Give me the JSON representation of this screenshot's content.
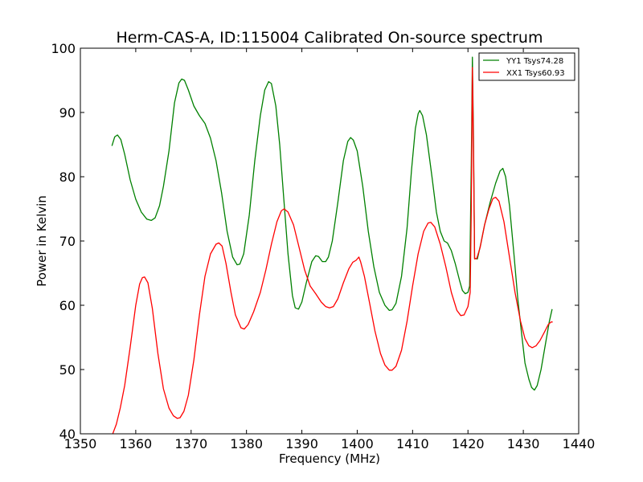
{
  "chart_data": {
    "type": "line",
    "title": "Herm-CAS-A, ID:115004 Calibrated On-source spectrum",
    "xlabel": "Frequency (MHz)",
    "ylabel": "Power in Kelvin",
    "xlim": [
      1350,
      1440
    ],
    "ylim": [
      40,
      100
    ],
    "xticks": [
      1350,
      1360,
      1370,
      1380,
      1390,
      1400,
      1410,
      1420,
      1430,
      1440
    ],
    "yticks": [
      40,
      50,
      60,
      70,
      80,
      90,
      100
    ],
    "grid": false,
    "legend_position": "top-right",
    "series": [
      {
        "name": "YY1 Tsys74.28",
        "color": "#008000",
        "points": [
          [
            1355.7,
            84.8
          ],
          [
            1356.2,
            86.2
          ],
          [
            1356.7,
            86.5
          ],
          [
            1357.3,
            85.8
          ],
          [
            1358.0,
            83.5
          ],
          [
            1359.0,
            79.5
          ],
          [
            1360.0,
            76.5
          ],
          [
            1361.0,
            74.5
          ],
          [
            1362.0,
            73.4
          ],
          [
            1362.8,
            73.2
          ],
          [
            1363.5,
            73.6
          ],
          [
            1364.3,
            75.5
          ],
          [
            1365.0,
            78.5
          ],
          [
            1366.0,
            84.0
          ],
          [
            1367.0,
            91.5
          ],
          [
            1367.8,
            94.6
          ],
          [
            1368.3,
            95.2
          ],
          [
            1368.8,
            95.0
          ],
          [
            1369.5,
            93.5
          ],
          [
            1370.5,
            91.0
          ],
          [
            1371.5,
            89.5
          ],
          [
            1372.5,
            88.3
          ],
          [
            1373.5,
            86.0
          ],
          [
            1374.5,
            82.5
          ],
          [
            1375.5,
            77.5
          ],
          [
            1376.5,
            71.5
          ],
          [
            1377.5,
            67.5
          ],
          [
            1378.3,
            66.3
          ],
          [
            1378.8,
            66.4
          ],
          [
            1379.5,
            68.0
          ],
          [
            1380.5,
            74.0
          ],
          [
            1381.5,
            82.5
          ],
          [
            1382.5,
            89.5
          ],
          [
            1383.3,
            93.5
          ],
          [
            1384.0,
            94.8
          ],
          [
            1384.5,
            94.5
          ],
          [
            1385.3,
            91.0
          ],
          [
            1386.0,
            85.0
          ],
          [
            1386.7,
            77.0
          ],
          [
            1387.5,
            68.0
          ],
          [
            1388.3,
            61.5
          ],
          [
            1388.8,
            59.6
          ],
          [
            1389.4,
            59.4
          ],
          [
            1390.0,
            60.5
          ],
          [
            1390.8,
            63.5
          ],
          [
            1391.8,
            66.8
          ],
          [
            1392.5,
            67.7
          ],
          [
            1393.0,
            67.6
          ],
          [
            1393.7,
            66.8
          ],
          [
            1394.3,
            66.8
          ],
          [
            1394.8,
            67.5
          ],
          [
            1395.5,
            70.0
          ],
          [
            1396.5,
            76.0
          ],
          [
            1397.5,
            82.5
          ],
          [
            1398.3,
            85.5
          ],
          [
            1398.8,
            86.1
          ],
          [
            1399.3,
            85.7
          ],
          [
            1400.0,
            84.0
          ],
          [
            1401.0,
            78.5
          ],
          [
            1402.0,
            71.5
          ],
          [
            1403.0,
            66.0
          ],
          [
            1404.0,
            62.0
          ],
          [
            1405.0,
            60.0
          ],
          [
            1405.8,
            59.2
          ],
          [
            1406.3,
            59.3
          ],
          [
            1407.0,
            60.3
          ],
          [
            1408.0,
            64.5
          ],
          [
            1409.0,
            72.0
          ],
          [
            1409.8,
            81.0
          ],
          [
            1410.5,
            87.5
          ],
          [
            1411.0,
            89.8
          ],
          [
            1411.3,
            90.3
          ],
          [
            1411.8,
            89.5
          ],
          [
            1412.5,
            86.5
          ],
          [
            1413.5,
            80.0
          ],
          [
            1414.3,
            74.5
          ],
          [
            1415.0,
            71.5
          ],
          [
            1415.7,
            70.0
          ],
          [
            1416.3,
            69.7
          ],
          [
            1417.0,
            68.5
          ],
          [
            1417.7,
            66.5
          ],
          [
            1418.5,
            63.8
          ],
          [
            1419.0,
            62.3
          ],
          [
            1419.5,
            61.8
          ],
          [
            1420.0,
            62.0
          ],
          [
            1420.3,
            63.0
          ],
          [
            1420.6,
            82.0
          ],
          [
            1420.8,
            98.6
          ],
          [
            1421.0,
            86.0
          ],
          [
            1421.2,
            67.3
          ],
          [
            1421.7,
            67.2
          ],
          [
            1422.3,
            69.5
          ],
          [
            1423.0,
            72.5
          ],
          [
            1424.0,
            76.0
          ],
          [
            1425.0,
            79.0
          ],
          [
            1425.8,
            80.9
          ],
          [
            1426.3,
            81.3
          ],
          [
            1426.8,
            80.0
          ],
          [
            1427.5,
            75.5
          ],
          [
            1428.3,
            68.0
          ],
          [
            1429.0,
            61.0
          ],
          [
            1429.7,
            55.5
          ],
          [
            1430.3,
            51.0
          ],
          [
            1431.0,
            48.5
          ],
          [
            1431.5,
            47.2
          ],
          [
            1432.0,
            46.8
          ],
          [
            1432.5,
            47.5
          ],
          [
            1433.2,
            50.0
          ],
          [
            1434.0,
            54.0
          ],
          [
            1434.7,
            57.5
          ],
          [
            1435.2,
            59.4
          ]
        ]
      },
      {
        "name": "XX1 Tsys60.93",
        "color": "#ff0000",
        "points": [
          [
            1355.8,
            39.9
          ],
          [
            1356.5,
            41.5
          ],
          [
            1357.2,
            44.0
          ],
          [
            1358.0,
            47.5
          ],
          [
            1359.0,
            53.5
          ],
          [
            1360.0,
            60.0
          ],
          [
            1360.7,
            63.3
          ],
          [
            1361.2,
            64.3
          ],
          [
            1361.6,
            64.4
          ],
          [
            1362.2,
            63.5
          ],
          [
            1363.0,
            59.5
          ],
          [
            1364.0,
            52.5
          ],
          [
            1365.0,
            47.0
          ],
          [
            1366.0,
            44.0
          ],
          [
            1366.8,
            42.8
          ],
          [
            1367.5,
            42.4
          ],
          [
            1368.0,
            42.5
          ],
          [
            1368.7,
            43.5
          ],
          [
            1369.5,
            46.0
          ],
          [
            1370.5,
            51.5
          ],
          [
            1371.5,
            58.5
          ],
          [
            1372.5,
            64.5
          ],
          [
            1373.5,
            68.0
          ],
          [
            1374.5,
            69.5
          ],
          [
            1375.0,
            69.7
          ],
          [
            1375.6,
            69.2
          ],
          [
            1376.3,
            66.5
          ],
          [
            1377.2,
            62.0
          ],
          [
            1378.0,
            58.5
          ],
          [
            1379.0,
            56.5
          ],
          [
            1379.6,
            56.3
          ],
          [
            1380.3,
            57.0
          ],
          [
            1381.3,
            59.0
          ],
          [
            1382.5,
            62.0
          ],
          [
            1383.5,
            65.5
          ],
          [
            1384.5,
            69.5
          ],
          [
            1385.5,
            73.0
          ],
          [
            1386.3,
            74.7
          ],
          [
            1386.8,
            75.0
          ],
          [
            1387.5,
            74.5
          ],
          [
            1388.5,
            72.5
          ],
          [
            1389.5,
            69.0
          ],
          [
            1390.5,
            65.5
          ],
          [
            1391.5,
            63.0
          ],
          [
            1392.5,
            61.8
          ],
          [
            1393.5,
            60.5
          ],
          [
            1394.3,
            59.8
          ],
          [
            1395.0,
            59.6
          ],
          [
            1395.7,
            59.8
          ],
          [
            1396.5,
            61.0
          ],
          [
            1397.5,
            63.5
          ],
          [
            1398.5,
            65.7
          ],
          [
            1399.2,
            66.7
          ],
          [
            1399.8,
            67.0
          ],
          [
            1400.3,
            67.5
          ],
          [
            1400.6,
            66.8
          ],
          [
            1401.3,
            64.5
          ],
          [
            1402.2,
            60.5
          ],
          [
            1403.2,
            56.0
          ],
          [
            1404.2,
            52.5
          ],
          [
            1405.0,
            50.7
          ],
          [
            1405.8,
            49.9
          ],
          [
            1406.3,
            49.9
          ],
          [
            1407.0,
            50.5
          ],
          [
            1408.0,
            53.0
          ],
          [
            1409.0,
            57.5
          ],
          [
            1410.0,
            63.0
          ],
          [
            1411.0,
            68.0
          ],
          [
            1412.0,
            71.5
          ],
          [
            1412.8,
            72.8
          ],
          [
            1413.3,
            72.9
          ],
          [
            1414.0,
            72.2
          ],
          [
            1415.0,
            69.5
          ],
          [
            1416.0,
            66.0
          ],
          [
            1417.0,
            62.0
          ],
          [
            1418.0,
            59.2
          ],
          [
            1418.7,
            58.4
          ],
          [
            1419.3,
            58.5
          ],
          [
            1420.0,
            59.8
          ],
          [
            1420.4,
            62.0
          ],
          [
            1420.6,
            75.0
          ],
          [
            1420.8,
            97.0
          ],
          [
            1421.0,
            84.0
          ],
          [
            1421.2,
            67.2
          ],
          [
            1421.6,
            67.3
          ],
          [
            1422.2,
            69.0
          ],
          [
            1423.0,
            72.5
          ],
          [
            1423.8,
            75.0
          ],
          [
            1424.5,
            76.6
          ],
          [
            1425.0,
            76.8
          ],
          [
            1425.6,
            76.2
          ],
          [
            1426.5,
            73.0
          ],
          [
            1427.5,
            67.5
          ],
          [
            1428.5,
            62.0
          ],
          [
            1429.5,
            57.5
          ],
          [
            1430.3,
            54.8
          ],
          [
            1431.0,
            53.7
          ],
          [
            1431.6,
            53.4
          ],
          [
            1432.3,
            53.7
          ],
          [
            1433.0,
            54.5
          ],
          [
            1433.8,
            55.8
          ],
          [
            1434.5,
            57.0
          ],
          [
            1435.0,
            57.4
          ],
          [
            1435.3,
            57.4
          ]
        ]
      }
    ]
  }
}
